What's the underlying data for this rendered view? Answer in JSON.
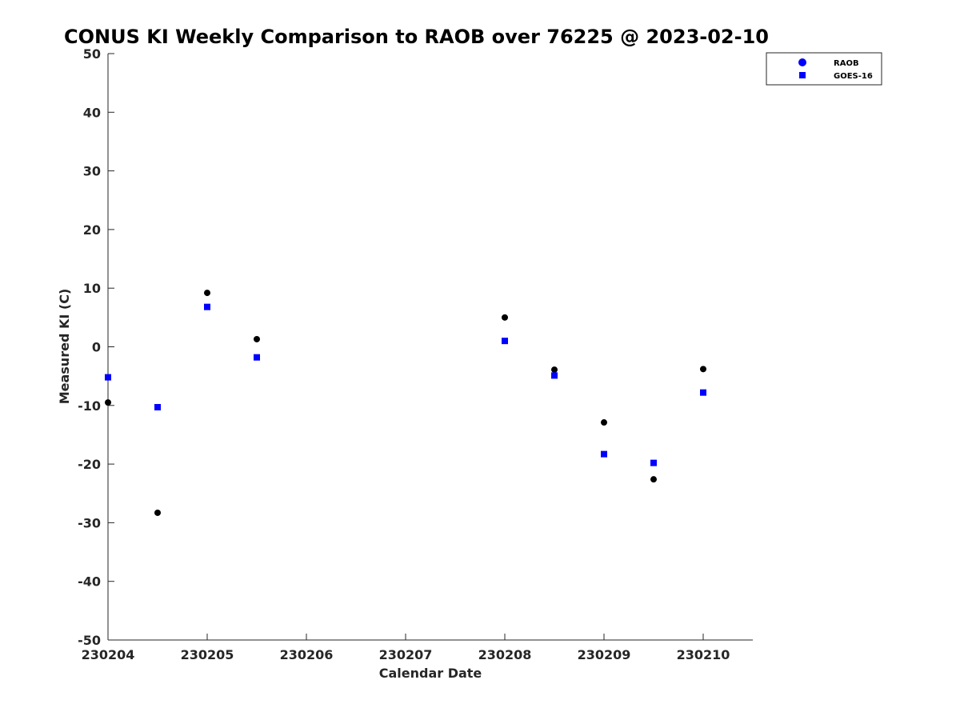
{
  "chart_data": {
    "type": "scatter",
    "title": "CONUS KI Weekly Comparison to RAOB over 76225 @ 2023-02-10",
    "xlabel": "Calendar Date",
    "ylabel": "Measured KI (C)",
    "xlim": [
      4,
      10.5
    ],
    "ylim": [
      -50,
      50
    ],
    "x_ticks": [
      4,
      5,
      6,
      7,
      8,
      9,
      10
    ],
    "x_tick_labels": [
      "230204",
      "230205",
      "230206",
      "230207",
      "230208",
      "230209",
      "230210"
    ],
    "y_ticks": [
      -50,
      -40,
      -30,
      -20,
      -10,
      0,
      10,
      20,
      30,
      40,
      50
    ],
    "y_tick_labels": [
      "-50",
      "-40",
      "-30",
      "-20",
      "-10",
      "0",
      "10",
      "20",
      "30",
      "40",
      "50"
    ],
    "grid": false,
    "legend_position": "top-right",
    "series": [
      {
        "name": "RAOB",
        "marker": "circle",
        "color": "#000000",
        "legend_color": "#0000ff",
        "points": [
          {
            "x": 4.0,
            "y": -9.5
          },
          {
            "x": 4.5,
            "y": -28.3
          },
          {
            "x": 5.0,
            "y": 9.2
          },
          {
            "x": 5.5,
            "y": 1.3
          },
          {
            "x": 8.0,
            "y": 5.0
          },
          {
            "x": 8.5,
            "y": -3.9
          },
          {
            "x": 9.0,
            "y": -12.9
          },
          {
            "x": 9.5,
            "y": -22.6
          },
          {
            "x": 10.0,
            "y": -3.8
          }
        ]
      },
      {
        "name": "GOES-16",
        "marker": "square",
        "color": "#0000ff",
        "legend_color": "#0000ff",
        "points": [
          {
            "x": 4.0,
            "y": -5.2
          },
          {
            "x": 4.5,
            "y": -10.3
          },
          {
            "x": 5.0,
            "y": 6.8
          },
          {
            "x": 5.5,
            "y": -1.8
          },
          {
            "x": 8.0,
            "y": 1.0
          },
          {
            "x": 8.5,
            "y": -4.9
          },
          {
            "x": 9.0,
            "y": -18.3
          },
          {
            "x": 9.5,
            "y": -19.8
          },
          {
            "x": 10.0,
            "y": -7.8
          }
        ]
      }
    ]
  }
}
